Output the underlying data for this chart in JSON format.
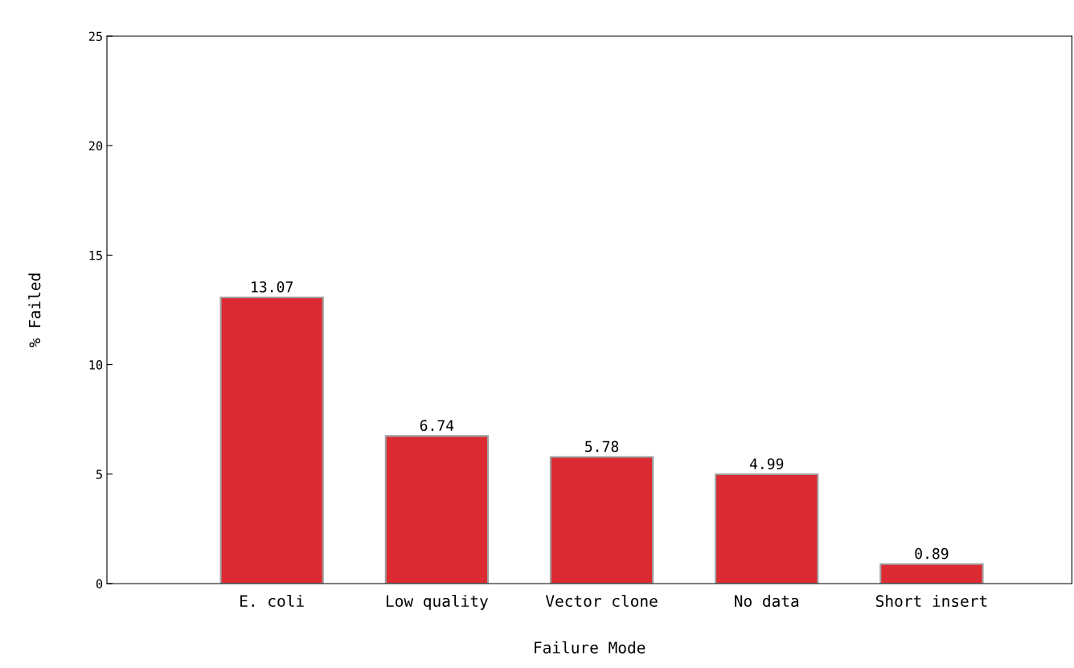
{
  "chart_data": {
    "type": "bar",
    "xlabel": "Failure Mode",
    "ylabel": "% Failed",
    "categories": [
      "E. coli",
      "Low quality",
      "Vector clone",
      "No data",
      "Short insert"
    ],
    "values": [
      13.07,
      6.74,
      5.78,
      4.99,
      0.89
    ],
    "color": "#dc2a32",
    "ylim": [
      0,
      25
    ],
    "yticks": [
      0,
      5,
      10,
      15,
      20,
      25
    ],
    "data_labels": true,
    "grid": false,
    "legend": false
  }
}
